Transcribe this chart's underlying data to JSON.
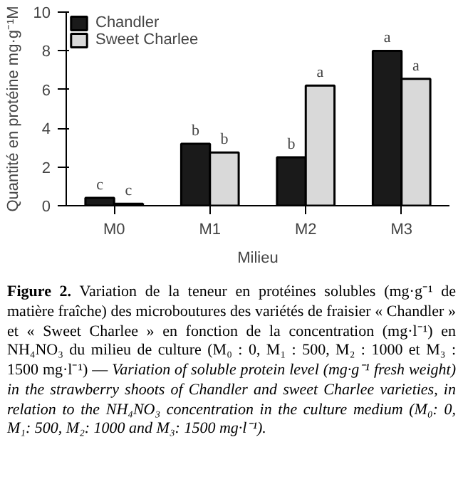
{
  "chart_data": {
    "type": "bar",
    "xlabel": "Milieu",
    "ylabel": "Quantité en protéine mg·g⁻¹M",
    "categories": [
      "M0",
      "M1",
      "M2",
      "M3"
    ],
    "series": [
      {
        "name": "Chandler",
        "color": "#1a1a1a",
        "values": [
          0.4,
          3.2,
          2.5,
          8.0
        ],
        "value_labels": [
          "c",
          "b",
          "b",
          "a"
        ]
      },
      {
        "name": "Sweet Charlee",
        "color": "#d9d9d9",
        "values": [
          0.1,
          2.75,
          6.2,
          6.55
        ],
        "value_labels": [
          "c",
          "b",
          "a",
          "a"
        ]
      }
    ],
    "ylim": [
      0,
      10
    ],
    "yticks": [
      0,
      2,
      4,
      6,
      8,
      10
    ],
    "grid": false,
    "legend": "top left",
    "annotations": [
      "Figure 2.",
      "Variation de la teneur en protéines solubles (mg·g⁻¹ de matière fraîche) des microboutures des variétés de fraisier « Chandler » et « Sweet Charlee » en fonction de la concentration (mg·l⁻¹) en NH₄NO₃ du milieu de culture (M₀ : 0, M₁ : 500, M₂ : 1000 et M₃ : 1500 mg·l⁻¹) —",
      "Variation of soluble protein level (mg·g⁻¹ fresh weight) in the strawberry shoots of Chandler and sweet Charlee varieties, in relation to the NH₄NO₃ concentration in the culture medium (M₀: 0, M₁: 500, M₂: 1000 and M₃: 1500 mg·l⁻¹)."
    ]
  }
}
